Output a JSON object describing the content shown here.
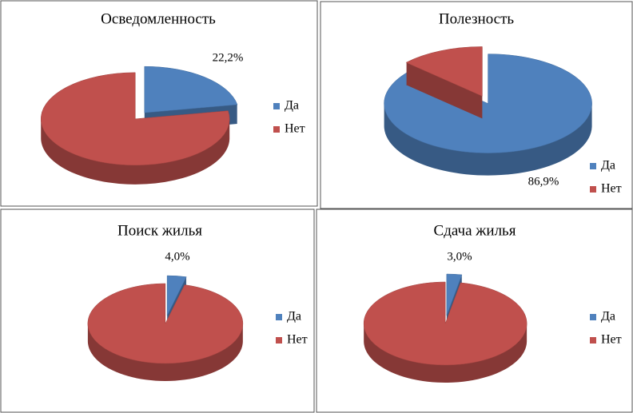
{
  "chart_data": [
    {
      "type": "pie",
      "title": "Осведомленность",
      "categories": [
        "Да",
        "Нет"
      ],
      "values": [
        22.2,
        77.8
      ],
      "value_labels": [
        "22,2%",
        null
      ],
      "colors": [
        "#4f81bd",
        "#c0504d"
      ]
    },
    {
      "type": "pie",
      "title": "Полезность",
      "categories": [
        "Да",
        "Нет"
      ],
      "values": [
        86.9,
        13.1
      ],
      "value_labels": [
        "86,9%",
        null
      ],
      "colors": [
        "#4f81bd",
        "#c0504d"
      ]
    },
    {
      "type": "pie",
      "title": "Поиск жилья",
      "categories": [
        "Да",
        "Нет"
      ],
      "values": [
        4.0,
        96.0
      ],
      "value_labels": [
        "4,0%",
        null
      ],
      "colors": [
        "#4f81bd",
        "#c0504d"
      ]
    },
    {
      "type": "pie",
      "title": "Сдача жилья",
      "categories": [
        "Да",
        "Нет"
      ],
      "values": [
        3.0,
        97.0
      ],
      "value_labels": [
        "3,0%",
        null
      ],
      "colors": [
        "#4f81bd",
        "#c0504d"
      ]
    }
  ]
}
